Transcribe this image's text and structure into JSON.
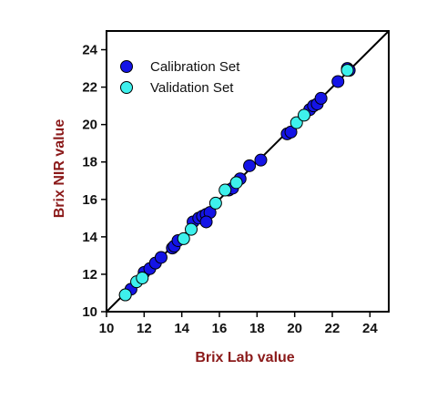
{
  "chart_data": {
    "type": "scatter",
    "xlabel": "Brix Lab value",
    "ylabel": "Brix NIR value",
    "xlim": [
      10,
      25
    ],
    "ylim": [
      10,
      25
    ],
    "xticks": [
      10,
      12,
      14,
      16,
      18,
      20,
      22,
      24
    ],
    "yticks": [
      10,
      12,
      14,
      16,
      18,
      20,
      22,
      24
    ],
    "grid": false,
    "legend_position": "top-left",
    "reference_line": {
      "type": "identity",
      "color": "#000000"
    },
    "label_color": "#8b1a1a",
    "series": [
      {
        "name": "Calibration Set",
        "color": "#1414e6",
        "points": [
          [
            11.0,
            10.9
          ],
          [
            11.3,
            11.2
          ],
          [
            12.0,
            12.1
          ],
          [
            12.3,
            12.3
          ],
          [
            12.6,
            12.6
          ],
          [
            12.9,
            12.9
          ],
          [
            13.5,
            13.4
          ],
          [
            13.6,
            13.5
          ],
          [
            13.8,
            13.8
          ],
          [
            14.6,
            14.8
          ],
          [
            14.9,
            15.0
          ],
          [
            15.1,
            15.1
          ],
          [
            15.3,
            15.2
          ],
          [
            15.5,
            15.3
          ],
          [
            15.3,
            14.8
          ],
          [
            16.5,
            16.5
          ],
          [
            16.7,
            16.6
          ],
          [
            17.1,
            17.1
          ],
          [
            17.6,
            17.8
          ],
          [
            18.2,
            18.1
          ],
          [
            19.6,
            19.5
          ],
          [
            19.8,
            19.6
          ],
          [
            20.8,
            20.8
          ],
          [
            21.0,
            21.0
          ],
          [
            21.2,
            21.1
          ],
          [
            21.4,
            21.4
          ],
          [
            22.3,
            22.3
          ],
          [
            22.8,
            23.0
          ],
          [
            22.9,
            22.9
          ]
        ]
      },
      {
        "name": "Validation Set",
        "color": "#3ef0ec",
        "points": [
          [
            11.0,
            10.9
          ],
          [
            11.6,
            11.6
          ],
          [
            11.9,
            11.8
          ],
          [
            14.1,
            13.9
          ],
          [
            14.5,
            14.4
          ],
          [
            15.8,
            15.8
          ],
          [
            16.3,
            16.5
          ],
          [
            16.9,
            16.9
          ],
          [
            20.1,
            20.1
          ],
          [
            20.5,
            20.5
          ],
          [
            22.8,
            22.9
          ]
        ]
      }
    ]
  }
}
